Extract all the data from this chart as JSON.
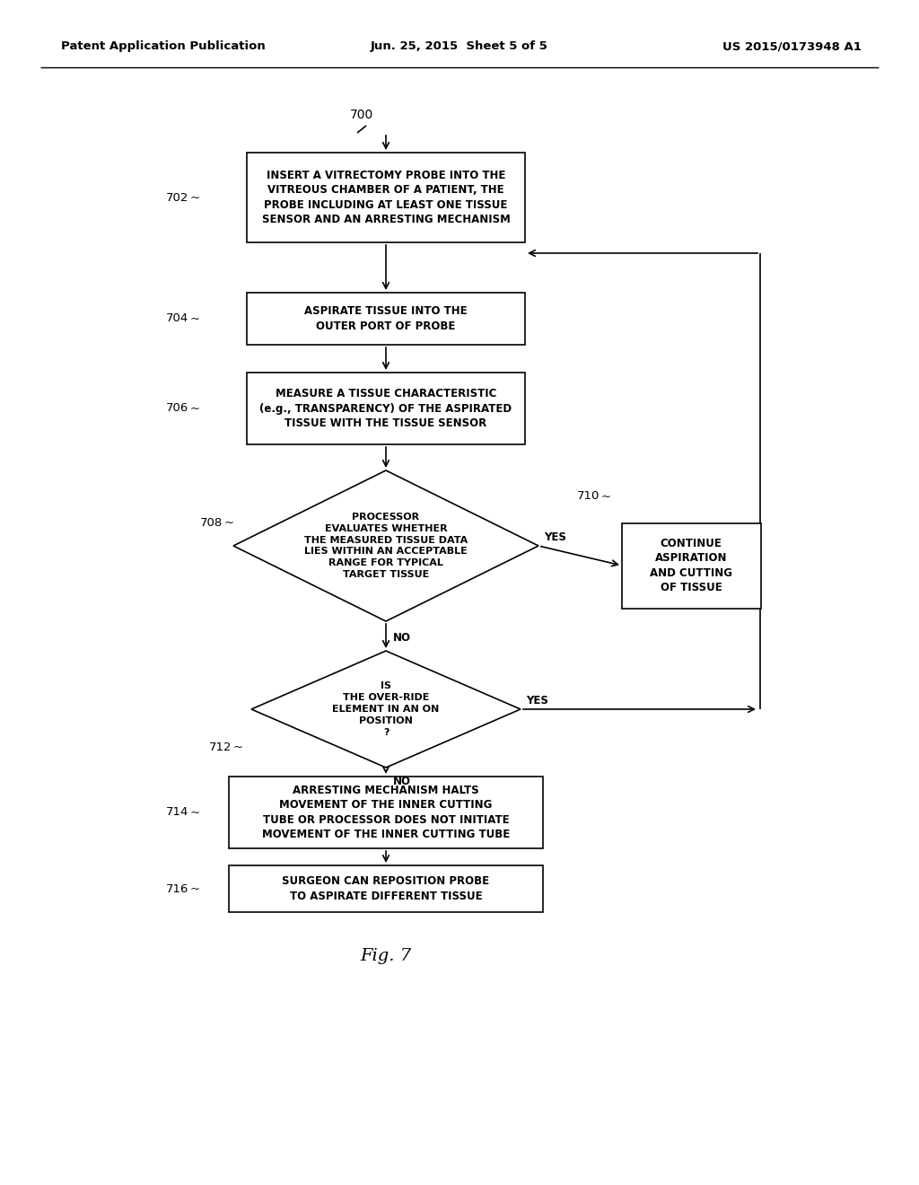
{
  "header_left": "Patent Application Publication",
  "header_center": "Jun. 25, 2015  Sheet 5 of 5",
  "header_right": "US 2015/0173948 A1",
  "fig_label": "Fig. 7",
  "diagram_label": "700",
  "bg_color": "#ffffff",
  "lw": 1.2,
  "box702_label": "INSERT A VITRECTOMY PROBE INTO THE\nVITREOUS CHAMBER OF A PATIENT, THE\nPROBE INCLUDING AT LEAST ONE TISSUE\nSENSOR AND AN ARRESTING MECHANISM",
  "box704_label": "ASPIRATE TISSUE INTO THE\nOUTER PORT OF PROBE",
  "box706_label": "MEASURE A TISSUE CHARACTERISTIC\n(e.g., TRANSPARENCY) OF THE ASPIRATED\nTISSUE WITH THE TISSUE SENSOR",
  "dia708_label": "PROCESSOR\nEVALUATES WHETHER\nTHE MEASURED TISSUE DATA\nLIES WITHIN AN ACCEPTABLE\nRANGE FOR TYPICAL\nTARGET TISSUE",
  "box710_label": "CONTINUE\nASPIRATION\nAND CUTTING\nOF TISSUE",
  "dia712_label": "IS\nTHE OVER-RIDE\nELEMENT IN AN ON\nPOSITION\n?",
  "box714_label": "ARRESTING MECHANISM HALTS\nMOVEMENT OF THE INNER CUTTING\nTUBE OR PROCESSOR DOES NOT INITIATE\nMOVEMENT OF THE INNER CUTTING TUBE",
  "box716_label": "SURGEON CAN REPOSITION PROBE\nTO ASPIRATE DIFFERENT TISSUE"
}
